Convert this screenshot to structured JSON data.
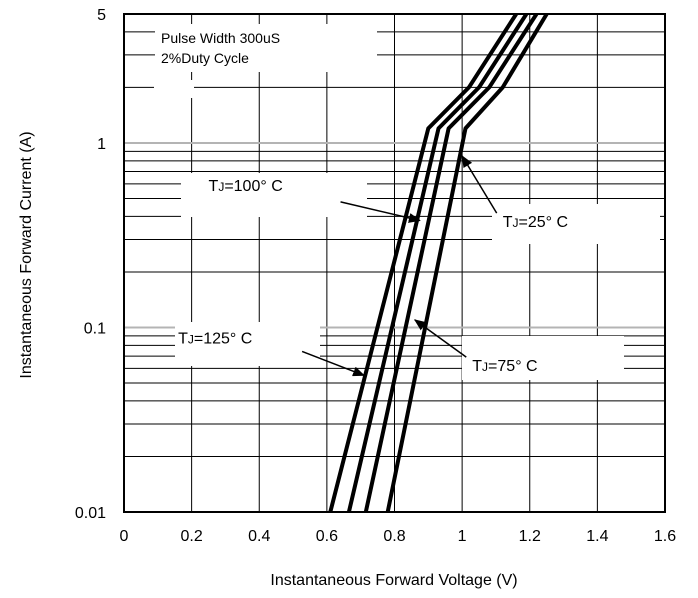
{
  "chart_data": {
    "type": "line",
    "title": "",
    "xlabel": "Instantaneous Forward Voltage (V)",
    "ylabel": "Instantaneous Forward Current (A)",
    "xlim": [
      0,
      1.6
    ],
    "ylim": [
      0.01,
      5
    ],
    "yscale": "log",
    "grid": true,
    "x_ticks": [
      "0",
      "0.2",
      "0.4",
      "0.6",
      "0.8",
      "1",
      "1.2",
      "1.4",
      "1.6"
    ],
    "y_ticks": [
      "0.01",
      "0.1",
      "1",
      "5"
    ],
    "series": [
      {
        "name": "TJ=125° C",
        "x": [
          0.61,
          0.9,
          1.02,
          1.16
        ],
        "y": [
          0.01,
          1.2,
          2.0,
          5.0
        ]
      },
      {
        "name": "TJ=100° C",
        "x": [
          0.665,
          0.93,
          1.05,
          1.19
        ],
        "y": [
          0.01,
          1.2,
          2.0,
          5.0
        ]
      },
      {
        "name": "TJ=75° C",
        "x": [
          0.715,
          0.96,
          1.08,
          1.22
        ],
        "y": [
          0.01,
          1.2,
          2.0,
          5.0
        ]
      },
      {
        "name": "TJ=25° C",
        "x": [
          0.78,
          1.01,
          1.12,
          1.25
        ],
        "y": [
          0.01,
          1.2,
          2.0,
          5.0
        ]
      }
    ],
    "annotations": [
      {
        "id": "t125",
        "prefix": "T",
        "sub": "J",
        "suffix": "=125° C",
        "target_series": 0,
        "label_x": 0.16,
        "label_y": 0.082,
        "arrow_to": [
          0.71,
          0.055
        ]
      },
      {
        "id": "t100",
        "prefix": "T",
        "sub": "J",
        "suffix": "=100° C",
        "target_series": 1,
        "label_x": 0.25,
        "label_y": 0.55,
        "arrow_to": [
          0.875,
          0.38
        ]
      },
      {
        "id": "t75",
        "prefix": "T",
        "sub": "J",
        "suffix": "=75° C",
        "target_series": 2,
        "label_x": 1.03,
        "label_y": 0.058,
        "arrow_to": [
          0.86,
          0.11
        ]
      },
      {
        "id": "t25",
        "prefix": "T",
        "sub": "J",
        "suffix": "=25° C",
        "target_series": 3,
        "label_x": 1.12,
        "label_y": 0.35,
        "arrow_to": [
          1.0,
          0.85
        ]
      }
    ],
    "notes": [
      "Pulse Width 300uS",
      "2%Duty Cycle"
    ]
  }
}
